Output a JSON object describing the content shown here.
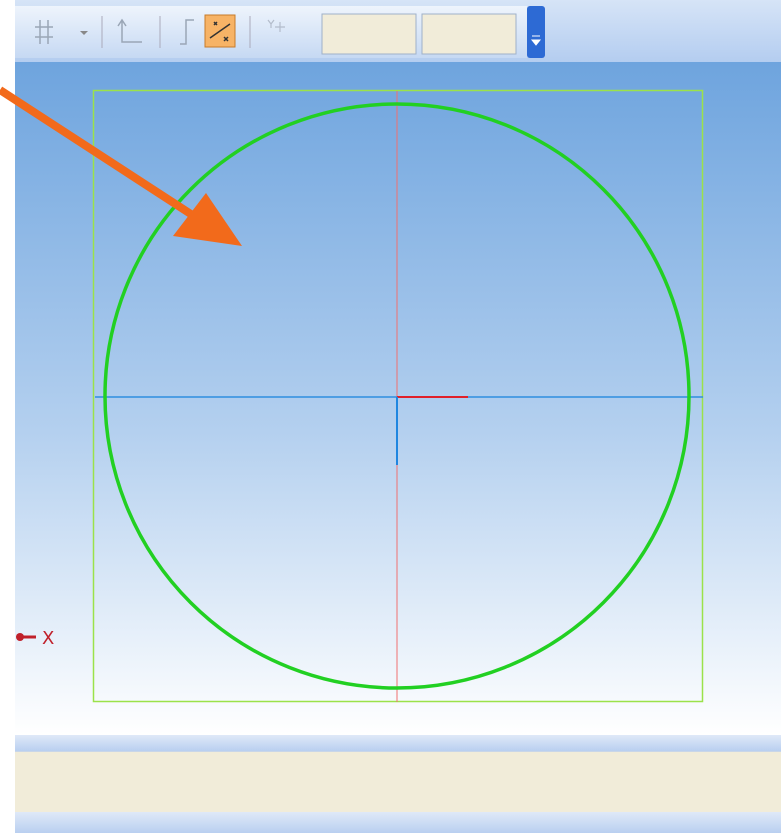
{
  "axis_label": "X"
}
